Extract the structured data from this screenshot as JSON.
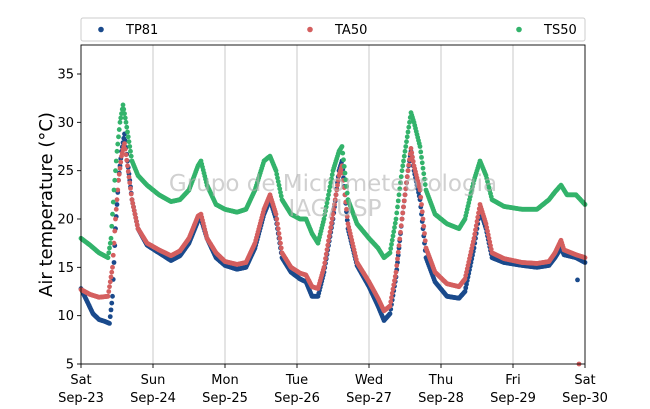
{
  "chart_data": {
    "type": "scatter",
    "ylabel": "Air temperature (°C)",
    "xlabel": "",
    "ylim": [
      5,
      38
    ],
    "yticks": [
      5,
      10,
      15,
      20,
      25,
      30,
      35
    ],
    "x_range": [
      "2017-09-23 00:00",
      "2017-09-30 00:00"
    ],
    "xticks": [
      {
        "weekday": "Sat",
        "date": "Sep-23"
      },
      {
        "weekday": "Sun",
        "date": "Sep-24"
      },
      {
        "weekday": "Mon",
        "date": "Sep-25"
      },
      {
        "weekday": "Tue",
        "date": "Sep-26"
      },
      {
        "weekday": "Wed",
        "date": "Sep-27"
      },
      {
        "weekday": "Thu",
        "date": "Sep-28"
      },
      {
        "weekday": "Fri",
        "date": "Sep-29"
      },
      {
        "weekday": "Sat",
        "date": "Sep-30"
      }
    ],
    "grid": "vertical",
    "legend_position": "top",
    "watermark": [
      "Grupo de Micrometeorologia",
      "IAG/USP"
    ],
    "series": [
      {
        "name": "TP81",
        "color": "#1a4a8c",
        "points": [
          [
            "09-23 00:00",
            12.8
          ],
          [
            "09-23 02:00",
            11.5
          ],
          [
            "09-23 04:00",
            10.2
          ],
          [
            "09-23 06:00",
            9.6
          ],
          [
            "09-23 08:00",
            9.4
          ],
          [
            "09-23 09:30",
            9.2
          ],
          [
            "09-23 10:30",
            12.0
          ],
          [
            "09-23 11:30",
            19.0
          ],
          [
            "09-23 12:30",
            24.0
          ],
          [
            "09-23 13:30",
            27.0
          ],
          [
            "09-23 14:30",
            28.8
          ],
          [
            "09-23 15:30",
            26.0
          ],
          [
            "09-23 17:00",
            22.0
          ],
          [
            "09-23 19:00",
            19.0
          ],
          [
            "09-23 22:00",
            17.3
          ],
          [
            "09-24 02:00",
            16.5
          ],
          [
            "09-24 06:00",
            15.7
          ],
          [
            "09-24 09:00",
            16.2
          ],
          [
            "09-24 12:00",
            17.5
          ],
          [
            "09-24 15:00",
            19.8
          ],
          [
            "09-24 16:00",
            20.0
          ],
          [
            "09-24 18:00",
            18.0
          ],
          [
            "09-24 21:00",
            16.0
          ],
          [
            "09-25 00:00",
            15.2
          ],
          [
            "09-25 04:00",
            14.8
          ],
          [
            "09-25 07:00",
            15.0
          ],
          [
            "09-25 10:00",
            17.0
          ],
          [
            "09-25 13:00",
            20.5
          ],
          [
            "09-25 15:00",
            22.0
          ],
          [
            "09-25 17:00",
            20.0
          ],
          [
            "09-25 19:00",
            16.0
          ],
          [
            "09-25 22:00",
            14.5
          ],
          [
            "09-26 01:00",
            13.8
          ],
          [
            "09-26 03:00",
            13.5
          ],
          [
            "09-26 05:00",
            12.0
          ],
          [
            "09-26 07:00",
            12.0
          ],
          [
            "09-26 09:00",
            14.5
          ],
          [
            "09-26 12:00",
            20.0
          ],
          [
            "09-26 14:00",
            25.0
          ],
          [
            "09-26 15:00",
            26.0
          ],
          [
            "09-26 17:00",
            19.0
          ],
          [
            "09-26 20:00",
            15.2
          ],
          [
            "09-27 00:00",
            13.0
          ],
          [
            "09-27 03:00",
            11.0
          ],
          [
            "09-27 05:00",
            9.5
          ],
          [
            "09-27 07:00",
            10.2
          ],
          [
            "09-27 09:00",
            14.0
          ],
          [
            "09-27 11:00",
            20.0
          ],
          [
            "09-27 13:00",
            25.0
          ],
          [
            "09-27 14:00",
            27.0
          ],
          [
            "09-27 15:00",
            25.0
          ],
          [
            "09-27 17:00",
            22.0
          ],
          [
            "09-27 19:00",
            16.0
          ],
          [
            "09-27 22:00",
            13.5
          ],
          [
            "09-28 02:00",
            12.0
          ],
          [
            "09-28 06:00",
            11.8
          ],
          [
            "09-28 08:00",
            12.5
          ],
          [
            "09-28 11:00",
            17.0
          ],
          [
            "09-28 13:00",
            21.0
          ],
          [
            "09-28 15:00",
            19.0
          ],
          [
            "09-28 17:00",
            16.0
          ],
          [
            "09-28 21:00",
            15.5
          ],
          [
            "09-29 03:00",
            15.2
          ],
          [
            "09-29 08:00",
            15.0
          ],
          [
            "09-29 12:00",
            15.2
          ],
          [
            "09-29 14:00",
            16.0
          ],
          [
            "09-29 16:00",
            17.0
          ],
          [
            "09-29 17:00",
            16.3
          ],
          [
            "09-29 21:00",
            16.0
          ],
          [
            "09-30 00:00",
            15.5
          ]
        ],
        "outliers": [
          [
            "09-29 21:30",
            13.7
          ]
        ]
      },
      {
        "name": "TA50",
        "color": "#d45f5f",
        "points": [
          [
            "09-23 00:00",
            12.7
          ],
          [
            "09-23 03:00",
            12.2
          ],
          [
            "09-23 06:00",
            11.9
          ],
          [
            "09-23 09:00",
            12.0
          ],
          [
            "09-23 10:30",
            15.0
          ],
          [
            "09-23 11:30",
            20.0
          ],
          [
            "09-23 12:30",
            24.0
          ],
          [
            "09-23 13:30",
            26.5
          ],
          [
            "09-23 14:30",
            27.8
          ],
          [
            "09-23 15:30",
            25.5
          ],
          [
            "09-23 17:00",
            22.0
          ],
          [
            "09-23 19:00",
            19.0
          ],
          [
            "09-23 22:00",
            17.5
          ],
          [
            "09-24 02:00",
            16.8
          ],
          [
            "09-24 06:00",
            16.2
          ],
          [
            "09-24 09:00",
            16.7
          ],
          [
            "09-24 12:00",
            18.0
          ],
          [
            "09-24 15:00",
            20.3
          ],
          [
            "09-24 16:00",
            20.5
          ],
          [
            "09-24 18:00",
            18.0
          ],
          [
            "09-24 21:00",
            16.5
          ],
          [
            "09-25 00:00",
            15.6
          ],
          [
            "09-25 04:00",
            15.3
          ],
          [
            "09-25 07:00",
            15.5
          ],
          [
            "09-25 10:00",
            17.5
          ],
          [
            "09-25 13:00",
            21.0
          ],
          [
            "09-25 15:00",
            22.5
          ],
          [
            "09-25 17:00",
            20.5
          ],
          [
            "09-25 19:00",
            16.5
          ],
          [
            "09-25 22:00",
            15.0
          ],
          [
            "09-26 01:00",
            14.4
          ],
          [
            "09-26 03:00",
            14.2
          ],
          [
            "09-26 05:00",
            13.0
          ],
          [
            "09-26 07:00",
            12.8
          ],
          [
            "09-26 09:00",
            15.0
          ],
          [
            "09-26 12:00",
            20.5
          ],
          [
            "09-26 14:00",
            24.5
          ],
          [
            "09-26 15:00",
            25.5
          ],
          [
            "09-26 17:00",
            19.5
          ],
          [
            "09-26 20:00",
            15.5
          ],
          [
            "09-27 00:00",
            13.5
          ],
          [
            "09-27 03:00",
            11.8
          ],
          [
            "09-27 05:00",
            10.5
          ],
          [
            "09-27 07:00",
            11.0
          ],
          [
            "09-27 09:00",
            14.5
          ],
          [
            "09-27 11:00",
            20.0
          ],
          [
            "09-27 13:00",
            25.0
          ],
          [
            "09-27 14:00",
            27.3
          ],
          [
            "09-27 15:00",
            25.5
          ],
          [
            "09-27 17:00",
            23.0
          ],
          [
            "09-27 19:00",
            17.0
          ],
          [
            "09-27 22:00",
            14.5
          ],
          [
            "09-28 02:00",
            13.3
          ],
          [
            "09-28 06:00",
            13.0
          ],
          [
            "09-28 08:00",
            13.8
          ],
          [
            "09-28 11:00",
            18.0
          ],
          [
            "09-28 13:00",
            21.5
          ],
          [
            "09-28 15:00",
            19.5
          ],
          [
            "09-28 17:00",
            16.5
          ],
          [
            "09-28 21:00",
            15.9
          ],
          [
            "09-29 03:00",
            15.5
          ],
          [
            "09-29 08:00",
            15.4
          ],
          [
            "09-29 12:00",
            15.6
          ],
          [
            "09-29 14:00",
            16.5
          ],
          [
            "09-29 16:00",
            17.8
          ],
          [
            "09-29 17:00",
            16.8
          ],
          [
            "09-29 21:00",
            16.3
          ],
          [
            "09-30 00:00",
            16.0
          ]
        ],
        "outliers": [
          [
            "09-29 22:00",
            5.0
          ]
        ]
      },
      {
        "name": "TS50",
        "color": "#33b36b",
        "points": [
          [
            "09-23 00:00",
            18.0
          ],
          [
            "09-23 03:00",
            17.3
          ],
          [
            "09-23 06:00",
            16.5
          ],
          [
            "09-23 09:00",
            16.0
          ],
          [
            "09-23 10:00",
            18.0
          ],
          [
            "09-23 11:00",
            23.0
          ],
          [
            "09-23 12:00",
            27.0
          ],
          [
            "09-23 13:00",
            30.0
          ],
          [
            "09-23 14:00",
            31.8
          ],
          [
            "09-23 15:00",
            30.0
          ],
          [
            "09-23 17:00",
            26.0
          ],
          [
            "09-23 19:00",
            24.5
          ],
          [
            "09-23 22:00",
            23.5
          ],
          [
            "09-24 02:00",
            22.5
          ],
          [
            "09-24 06:00",
            21.8
          ],
          [
            "09-24 09:00",
            22.0
          ],
          [
            "09-24 12:00",
            23.0
          ],
          [
            "09-24 15:00",
            25.5
          ],
          [
            "09-24 16:00",
            26.0
          ],
          [
            "09-24 18:00",
            23.5
          ],
          [
            "09-24 21:00",
            21.5
          ],
          [
            "09-25 00:00",
            21.0
          ],
          [
            "09-25 04:00",
            20.7
          ],
          [
            "09-25 07:00",
            21.0
          ],
          [
            "09-25 10:00",
            23.0
          ],
          [
            "09-25 13:00",
            26.0
          ],
          [
            "09-25 15:00",
            26.5
          ],
          [
            "09-25 17:00",
            25.0
          ],
          [
            "09-25 19:00",
            22.0
          ],
          [
            "09-25 22:00",
            20.5
          ],
          [
            "09-26 01:00",
            20.0
          ],
          [
            "09-26 03:00",
            20.0
          ],
          [
            "09-26 05:00",
            18.5
          ],
          [
            "09-26 07:00",
            17.5
          ],
          [
            "09-26 09:00",
            20.0
          ],
          [
            "09-26 12:00",
            25.0
          ],
          [
            "09-26 14:00",
            27.0
          ],
          [
            "09-26 15:00",
            27.5
          ],
          [
            "09-26 17:00",
            22.0
          ],
          [
            "09-26 20:00",
            19.5
          ],
          [
            "09-27 00:00",
            18.0
          ],
          [
            "09-27 03:00",
            17.0
          ],
          [
            "09-27 05:00",
            16.0
          ],
          [
            "09-27 07:00",
            16.5
          ],
          [
            "09-27 09:00",
            20.0
          ],
          [
            "09-27 11:00",
            25.0
          ],
          [
            "09-27 13:00",
            29.0
          ],
          [
            "09-27 14:00",
            31.0
          ],
          [
            "09-27 15:00",
            30.0
          ],
          [
            "09-27 17:00",
            27.5
          ],
          [
            "09-27 19:00",
            23.0
          ],
          [
            "09-27 22:00",
            20.5
          ],
          [
            "09-28 02:00",
            19.5
          ],
          [
            "09-28 06:00",
            19.0
          ],
          [
            "09-28 08:00",
            20.0
          ],
          [
            "09-28 11:00",
            24.0
          ],
          [
            "09-28 13:00",
            26.0
          ],
          [
            "09-28 15:00",
            24.5
          ],
          [
            "09-28 17:00",
            22.0
          ],
          [
            "09-28 21:00",
            21.3
          ],
          [
            "09-29 03:00",
            21.0
          ],
          [
            "09-29 08:00",
            21.0
          ],
          [
            "09-29 12:00",
            22.0
          ],
          [
            "09-29 14:00",
            22.8
          ],
          [
            "09-29 16:00",
            23.5
          ],
          [
            "09-29 18:00",
            22.5
          ],
          [
            "09-29 21:00",
            22.5
          ],
          [
            "09-30 00:00",
            21.5
          ]
        ],
        "outliers": []
      }
    ]
  }
}
